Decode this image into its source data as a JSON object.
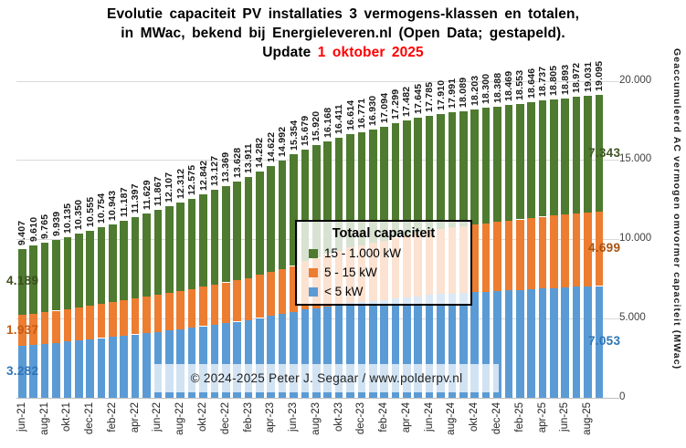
{
  "title": {
    "line1": "Evolutie capaciteit PV installaties 3 vermogens-klassen en totalen,",
    "line2": "in MWac, bekend bij Energieleveren.nl (Open Data; gestapeld).",
    "line3_prefix": "Update ",
    "line3_date": "1 oktober 2025",
    "date_color": "#ff0000"
  },
  "legend": {
    "title": "Totaal capaciteit",
    "items": [
      {
        "label": "15 - 1.000 kW",
        "color": "#4e7b2f"
      },
      {
        "label": "5 - 15 kW",
        "color": "#ed7d31"
      },
      {
        "label": "< 5 kW",
        "color": "#5b9bd5"
      }
    ]
  },
  "copyright": "© 2024-2025  Peter J. Segaar / www.polderpv.nl",
  "chart_data": {
    "type": "bar",
    "stacked": true,
    "title": "Evolutie capaciteit PV installaties 3 vermogens-klassen en totalen, in MWac (gestapeld)",
    "unit": "MWac",
    "y_axis_title": "Geaccumuleerd AC vermogen omvormer capaciteit (MWac)",
    "ylim": [
      0,
      20000
    ],
    "grid": "horizontal",
    "legend_position": "center-overlay",
    "y_ticks": [
      {
        "value": 0,
        "label": "0"
      },
      {
        "value": 5000,
        "label": "5.000"
      },
      {
        "value": 10000,
        "label": "10.000"
      },
      {
        "value": 15000,
        "label": "15.000"
      },
      {
        "value": 20000,
        "label": "20.000"
      }
    ],
    "x_tick_labels": [
      "jun-21",
      "aug-21",
      "okt-21",
      "dec-21",
      "feb-22",
      "apr-22",
      "jun-22",
      "aug-22",
      "okt-22",
      "dec-22",
      "feb-23",
      "apr-23",
      "jun-23",
      "aug-23",
      "okt-23",
      "dec-23",
      "feb-24",
      "apr-24",
      "jun-24",
      "aug-24",
      "okt-24",
      "dec-24",
      "feb-25",
      "apr-25",
      "jun-25",
      "aug-25"
    ],
    "x_tick_every": 2,
    "totals_labels": [
      "9.407",
      "9.610",
      "9.765",
      "9.939",
      "10.135",
      "10.350",
      "10.555",
      "10.754",
      "10.943",
      "11.187",
      "11.397",
      "11.629",
      "11.867",
      "12.107",
      "12.312",
      "12.575",
      "12.842",
      "13.127",
      "13.369",
      "13.628",
      "13.911",
      "14.282",
      "14.622",
      "14.992",
      "15.354",
      "15.679",
      "15.920",
      "16.168",
      "16.411",
      "16.614",
      "16.771",
      "16.930",
      "17.094",
      "17.299",
      "17.482",
      "17.645",
      "17.785",
      "17.910",
      "17.991",
      "18.089",
      "18.203",
      "18.300",
      "18.388",
      "18.469",
      "18.553",
      "18.646",
      "18.737",
      "18.805",
      "18.893",
      "18.972",
      "19.031",
      "19.095"
    ],
    "totals": [
      9407,
      9610,
      9765,
      9939,
      10135,
      10350,
      10555,
      10754,
      10943,
      11187,
      11397,
      11629,
      11867,
      12107,
      12312,
      12575,
      12842,
      13127,
      13369,
      13628,
      13911,
      14282,
      14622,
      14992,
      15354,
      15679,
      15920,
      16168,
      16411,
      16614,
      16771,
      16930,
      17094,
      17299,
      17482,
      17645,
      17785,
      17910,
      17991,
      18089,
      18203,
      18300,
      18388,
      18469,
      18553,
      18646,
      18737,
      18805,
      18893,
      18972,
      19031,
      19095
    ],
    "series": [
      {
        "name": "< 5 kW",
        "color": "#5b9bd5",
        "values": [
          3282,
          3355,
          3411,
          3474,
          3544,
          3621,
          3695,
          3767,
          3835,
          3923,
          3998,
          4082,
          4168,
          4254,
          4328,
          4422,
          4519,
          4621,
          4708,
          4802,
          4903,
          5037,
          5159,
          5293,
          5423,
          5565,
          5670,
          5778,
          5884,
          5972,
          6040,
          6110,
          6181,
          6270,
          6350,
          6421,
          6482,
          6537,
          6572,
          6615,
          6664,
          6707,
          6745,
          6780,
          6817,
          6857,
          6897,
          6927,
          6965,
          6999,
          7025,
          7053
        ]
      },
      {
        "name": "5 - 15 kW",
        "color": "#ed7d31",
        "values": [
          1937,
          1970,
          1994,
          2022,
          2054,
          2088,
          2121,
          2153,
          2184,
          2223,
          2257,
          2294,
          2332,
          2371,
          2404,
          2446,
          2489,
          2534,
          2573,
          2615,
          2660,
          2720,
          2775,
          2834,
          2892,
          3049,
          3165,
          3285,
          3403,
          3501,
          3576,
          3653,
          3732,
          3831,
          3920,
          3999,
          4066,
          4127,
          4166,
          4213,
          4268,
          4315,
          4358,
          4397,
          4437,
          4482,
          4526,
          4559,
          4601,
          4640,
          4668,
          4699
        ]
      },
      {
        "name": "15 - 1.000 kW",
        "color": "#4e7b2f",
        "values": [
          4189,
          4285,
          4360,
          4443,
          4537,
          4641,
          4739,
          4834,
          4924,
          5041,
          5142,
          5253,
          5367,
          5482,
          5580,
          5707,
          5834,
          5972,
          6088,
          6211,
          6348,
          6525,
          6688,
          6865,
          7039,
          7065,
          7085,
          7105,
          7124,
          7141,
          7155,
          7167,
          7181,
          7198,
          7212,
          7225,
          7237,
          7246,
          7253,
          7261,
          7271,
          7278,
          7285,
          7292,
          7299,
          7307,
          7314,
          7319,
          7327,
          7333,
          7338,
          7343
        ]
      }
    ],
    "first_bar_segment_labels": [
      {
        "text": "3.282",
        "color": "#2e75b6"
      },
      {
        "text": "1.937",
        "color": "#c55a11"
      },
      {
        "text": "4.189",
        "color": "#3d4d1e"
      }
    ],
    "last_bar_segment_labels": [
      {
        "text": "7.053",
        "color": "#2e75b6"
      },
      {
        "text": "4.699",
        "color": "#a8530e"
      },
      {
        "text": "7.343",
        "color": "#3f5425"
      }
    ]
  }
}
